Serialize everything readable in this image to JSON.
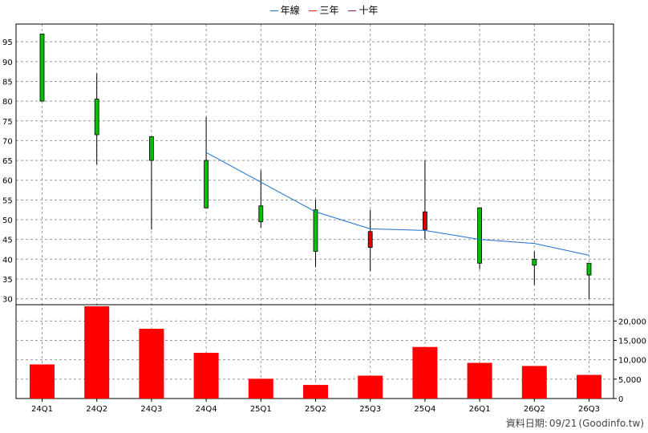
{
  "legend": [
    {
      "label": "年線",
      "color": "#1f6fd1"
    },
    {
      "label": "三年",
      "color": "#e0241f"
    },
    {
      "label": "十年",
      "color": "#8b1a6b"
    }
  ],
  "credit": {
    "prefix": "資料日期:",
    "date": "09/21",
    "source": "(Goodinfo.tw)"
  },
  "colors": {
    "up": "#00c000",
    "down": "#e00000",
    "volume": "#ff0000",
    "ma_line": "#1f6fd1",
    "grid": "#999999"
  },
  "chart_data": [
    {
      "type": "candlestick",
      "title": "",
      "categories": [
        "24Q1",
        "24Q2",
        "24Q3",
        "24Q4",
        "25Q1",
        "25Q2",
        "25Q3",
        "25Q4",
        "26Q1",
        "26Q2",
        "26Q3"
      ],
      "candles": [
        {
          "open": 80,
          "close": 97,
          "high": 97,
          "low": 80,
          "color": "up"
        },
        {
          "open": 71.5,
          "close": 80.5,
          "high": 87,
          "low": 64,
          "color": "up"
        },
        {
          "open": 65,
          "close": 71,
          "high": 71,
          "low": 47.5,
          "color": "up"
        },
        {
          "open": 53,
          "close": 65,
          "high": 76,
          "low": 53,
          "color": "up"
        },
        {
          "open": 49.5,
          "close": 53.5,
          "high": 62.5,
          "low": 48,
          "color": "up"
        },
        {
          "open": 42,
          "close": 52.5,
          "high": 55,
          "low": 38,
          "color": "up"
        },
        {
          "open": 47,
          "close": 43,
          "high": 52.5,
          "low": 37,
          "color": "down"
        },
        {
          "open": 52,
          "close": 47.5,
          "high": 65,
          "low": 45,
          "color": "down"
        },
        {
          "open": 39,
          "close": 53,
          "high": 53,
          "low": 37.5,
          "color": "up"
        },
        {
          "open": 38.5,
          "close": 40,
          "high": 42,
          "low": 33.5,
          "color": "up"
        },
        {
          "open": 36,
          "close": 39,
          "high": 39,
          "low": 30,
          "color": "up"
        }
      ],
      "ma_series": {
        "name": "年線",
        "start_index": 3,
        "values": [
          67,
          59.5,
          52,
          47.7,
          47.3,
          45,
          44,
          41
        ]
      },
      "yticks": [
        30,
        35,
        40,
        45,
        50,
        55,
        60,
        65,
        70,
        75,
        80,
        85,
        90,
        95
      ],
      "ylim": [
        28.5,
        99.5
      ],
      "grid": true,
      "legend_position": "top-center"
    },
    {
      "type": "bar",
      "title": "",
      "categories": [
        "24Q1",
        "24Q2",
        "24Q3",
        "24Q4",
        "25Q1",
        "25Q2",
        "25Q3",
        "25Q4",
        "26Q1",
        "26Q2",
        "26Q3"
      ],
      "values": [
        8800,
        23800,
        18000,
        11800,
        5100,
        3500,
        5900,
        13300,
        9200,
        8400,
        6100
      ],
      "yticks": [
        0,
        5000,
        10000,
        15000,
        20000
      ],
      "ytick_labels": [
        "0",
        "5,000",
        "10,000",
        "15,000",
        "20,000"
      ],
      "ylim": [
        0,
        23800
      ],
      "y_axis_side": "right",
      "grid": true
    }
  ]
}
